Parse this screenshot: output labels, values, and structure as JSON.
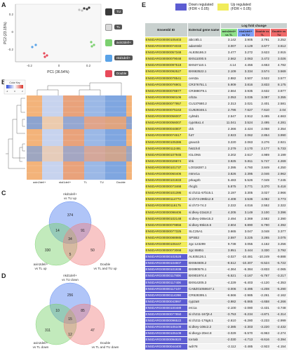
{
  "panels": {
    "a": "A",
    "b": "B",
    "c": "C",
    "d": "D",
    "e": "E"
  },
  "pca": {
    "xlabel": "PC1 (36.54%)",
    "ylabel": "PC2 (23.15%)",
    "xticks": [
      "-0.2",
      "0",
      "0.2"
    ],
    "yticks": [
      "0.2",
      "0",
      "-0.2"
    ],
    "legend": [
      "TU",
      "TL",
      "axin2del/+",
      "nkd1del/+",
      "Double"
    ],
    "colors": {
      "TU": "#3a3a3a",
      "TL": "#d9d9d9",
      "axin2": "#7bd06f",
      "nkd1": "#5aa3e8",
      "Double": "#e84a5a"
    }
  },
  "heatmap": {
    "scale_title": "Color Key",
    "scale_ticks": [
      "-2",
      "0",
      "2"
    ],
    "columns": [
      "axin2del/+",
      "nkd1del/+",
      "TL",
      "TU",
      "Double"
    ]
  },
  "venn_c": {
    "label_top": "nkd1del/+",
    "label_top2": "vs TU up",
    "label_left": "axin2del/+",
    "label_left2": "vs TL up",
    "label_right": "Double",
    "label_right2": "vs TL and TU up",
    "counts": [
      "374",
      "14",
      "91",
      "330",
      "34",
      "5",
      "50"
    ]
  },
  "venn_d": {
    "label_top": "nkd1del/+",
    "label_top2": "vs TU down",
    "label_left": "axin2del/+",
    "label_left2": "vs TL down",
    "label_right": "Double",
    "label_right2": "vs TL and TU down",
    "counts": [
      "256",
      "10",
      "85",
      "311",
      "15",
      "12",
      "47"
    ]
  },
  "table": {
    "legend_down": "Down regulated",
    "legend_down_fdr": "(FDR < 0.05)",
    "legend_up": "Up regulated",
    "legend_up_fdr": "(FDR < 0.05)",
    "header_fold": "Log fold change",
    "header_id": "Ensembl ID",
    "header_gene": "External gene name",
    "header_c1": "axin2del/+ vs TL",
    "header_c2": "nkd1del/+ vs TU",
    "header_c3": "Double vs TL",
    "header_c4": "Double vs TU",
    "colors": {
      "up": "#f1ec5a",
      "down": "#5c5cd2"
    },
    "rows": [
      [
        "up",
        "ENSDARG00000105403",
        "abcc6b.1",
        "3.142",
        "3.905",
        "3.791",
        "3.252"
      ],
      [
        "up",
        "ENSDARG00000074033",
        "adamtsl2",
        "3.007",
        "4.129",
        "3.677",
        "3.612"
      ],
      [
        "up",
        "ENSDARG00000057348",
        "AL935186.3",
        "3.477",
        "3.272",
        "3.623",
        "2.915"
      ],
      [
        "up",
        "ENSDARG00000079048",
        "BX511000.5",
        "2.562",
        "2.063",
        "3.472",
        "3.026"
      ],
      [
        "up",
        "ENSDARG00000097518",
        "BX537110.1",
        "4.14",
        "4.456",
        "4.653",
        "4.782"
      ],
      [
        "up",
        "ENSDARG00000092527",
        "BX663522.1",
        "2.109",
        "3.334",
        "3.574",
        "3.569"
      ],
      [
        "up",
        "ENSDARG00000078541",
        "cers3a",
        "2.882",
        "3.507",
        "3.522",
        "3.577"
      ],
      [
        "up",
        "ENSDARG00000076901",
        "CR376751.1",
        "5.909",
        "3.816",
        "3.833",
        "8.175"
      ],
      [
        "up",
        "ENSDARG00000078877",
        "CR388079.1",
        "2.564",
        "3.935",
        "3.632",
        "3.877"
      ],
      [
        "up",
        "ENSDARG00000060106",
        "crb2a",
        "2.053",
        "3.035",
        "3.087",
        "3.355"
      ],
      [
        "up",
        "ENSDARG00000077957",
        "CU137680.2",
        "2.313",
        "2.021",
        "2.401",
        "2.581"
      ],
      [
        "up",
        "ENSDARG00000075163",
        "CU929346.1",
        "2.796",
        "7.627",
        "7.610",
        "2.04"
      ],
      [
        "up",
        "ENSDARG00000056007",
        "cyb5d1",
        "2.547",
        "2.912",
        "3.465",
        "4.663"
      ],
      [
        "up",
        "ENSDARG00000056007",
        "cyp46a1.4",
        "11.041",
        "3.524",
        "2.495",
        "4.281"
      ],
      [
        "up",
        "ENSDARG00000044807",
        "dck",
        "2.366",
        "2.424",
        "2.058",
        "2.354"
      ],
      [
        "up",
        "ENSDARG00000074617",
        "fut7",
        "2.923",
        "2.062",
        "2.854",
        "3.990"
      ],
      [
        "up",
        "ENSDARG00000105386",
        "gnao1b",
        "3.220",
        "2.063",
        "3.276",
        "2.921"
      ],
      [
        "up",
        "ENSDARG00000112491",
        "hist1h4l",
        "2.279",
        "2.170",
        "2.177",
        "5.733"
      ],
      [
        "up",
        "ENSDARG00000107945",
        "IGLON5",
        "3.202",
        "2.617",
        "4.989",
        "3.199"
      ],
      [
        "up",
        "ENSDARG00000029874",
        "khk",
        "3.925",
        "5.911",
        "5.747",
        "4.269"
      ],
      [
        "up",
        "ENSDARG00000101737",
        "LO018287.1",
        "2.395",
        "4.760",
        "3.849",
        "4.250"
      ],
      [
        "up",
        "ENSDARG00000060406",
        "mtmr1a",
        "3.826",
        "2.395",
        "2.046",
        "2.962"
      ],
      [
        "up",
        "ENSDARG00000101933",
        "prkag2b",
        "5.483",
        "5.526",
        "7.049",
        "7.245"
      ],
      [
        "up",
        "ENSDARG00000073468",
        "rhcgl1",
        "5.875",
        "3.771",
        "3.370",
        "5.418"
      ],
      [
        "up",
        "ENSDARG00000101395",
        "si:ch211-57b15.1",
        "3.197",
        "3.305",
        "3.027",
        "2.966"
      ],
      [
        "up",
        "ENSDARG00000114772",
        "si:ch73-299b12.8",
        "4.408",
        "3.536",
        "4.082",
        "3.773"
      ],
      [
        "up",
        "ENSDARG00000116175",
        "si:ch73-74.2",
        "2.222",
        "4.016",
        "2.552",
        "2.322"
      ],
      [
        "up",
        "ENSDARG00000098406",
        "si:dkey-22a18.2",
        "4.205",
        "3.149",
        "3.100",
        "3.396"
      ],
      [
        "up",
        "ENSDARG00000102148",
        "si:dkey-265e15.2",
        "2.494",
        "2.369",
        "2.582",
        "2.390"
      ],
      [
        "up",
        "ENSDARG00000079856",
        "si:dkey-85k15.6",
        "2.604",
        "6.890",
        "6.790",
        "4.392"
      ],
      [
        "up",
        "ENSDARG00000077325",
        "SLC25A1",
        "3.665",
        "3.047",
        "3.048",
        "3.377"
      ],
      [
        "up",
        "ENSDARG00000088985",
        "SPSB2",
        "2.597",
        "3.225",
        "3.265",
        "3.075"
      ],
      [
        "up",
        "ENSDARG00000106447",
        "zgc:123299",
        "9.738",
        "3.055",
        "4.162",
        "3.256"
      ],
      [
        "up",
        "ENSDARG00000073068",
        "zgc:65851",
        "3.951",
        "3.444",
        "3.330",
        "3.792"
      ],
      [
        "down",
        "ENSDARG00000102528",
        "AL935126.1",
        "-3.027",
        "-10.481",
        "-10.249",
        "-9.888"
      ],
      [
        "down",
        "ENSDARG00000104607",
        "BX664606.2",
        "-8.512",
        "-10.307",
        "-6.524",
        "-5.722"
      ],
      [
        "down",
        "ENSDARG00000101938",
        "BX890576.1",
        "-4.364",
        "-6.384",
        "-3.833",
        "-2.065"
      ],
      [
        "down",
        "ENSDARG00000117806",
        "BX901974.4",
        "-5.521",
        "-3.167",
        "-5.767",
        "-3.217"
      ],
      [
        "down",
        "ENSDARG00000117406",
        "BX914205.3",
        "-4.229",
        "-6.403",
        "-4.120",
        "-4.353"
      ],
      [
        "down",
        "ENSDARG00000117107",
        "CABZ01058647.1",
        "-3.006",
        "-3.495",
        "-4.208",
        "-5.290"
      ],
      [
        "down",
        "ENSDARG00000114298",
        "CR628395.1",
        "-6.566",
        "-2.985",
        "-2.261",
        "-2.162"
      ],
      [
        "down",
        "ENSDARG00000043997",
        "cyp2a8",
        "-3.982",
        "-5.865",
        "-4.658",
        "-4.266"
      ],
      [
        "down",
        "ENSDARG00000100489",
        "erc1a",
        "-2.100",
        "-2.080",
        "-2.431",
        "-3.748"
      ],
      [
        "down",
        "ENSDARG00000077850",
        "si:ch211-167j9.4",
        "-3.753",
        "-6.234",
        "-4.871",
        "-4.314"
      ],
      [
        "down",
        "ENSDARG00000096522",
        "si:ch211-176g6.1",
        "-2.610",
        "-6.280",
        "-3.233",
        "-2.999"
      ],
      [
        "down",
        "ENSDARG00000105109",
        "si:dkey-106c2.2",
        "-2.385",
        "-2.303",
        "-3.220",
        "-2.432"
      ],
      [
        "down",
        "ENSDARG00000105109",
        "si:dkeyp-20e4.8",
        "-3.029",
        "-5.570",
        "-6.963",
        "-2.274"
      ],
      [
        "down",
        "ENSDARG00000094820",
        "tor4ab",
        "-2.030",
        "-4.713",
        "-8.616",
        "-3.394"
      ],
      [
        "down",
        "ENSDARG00000044400",
        "wdr78",
        "-2.112",
        "-3.485",
        "-2.923",
        "-4.154"
      ]
    ]
  }
}
